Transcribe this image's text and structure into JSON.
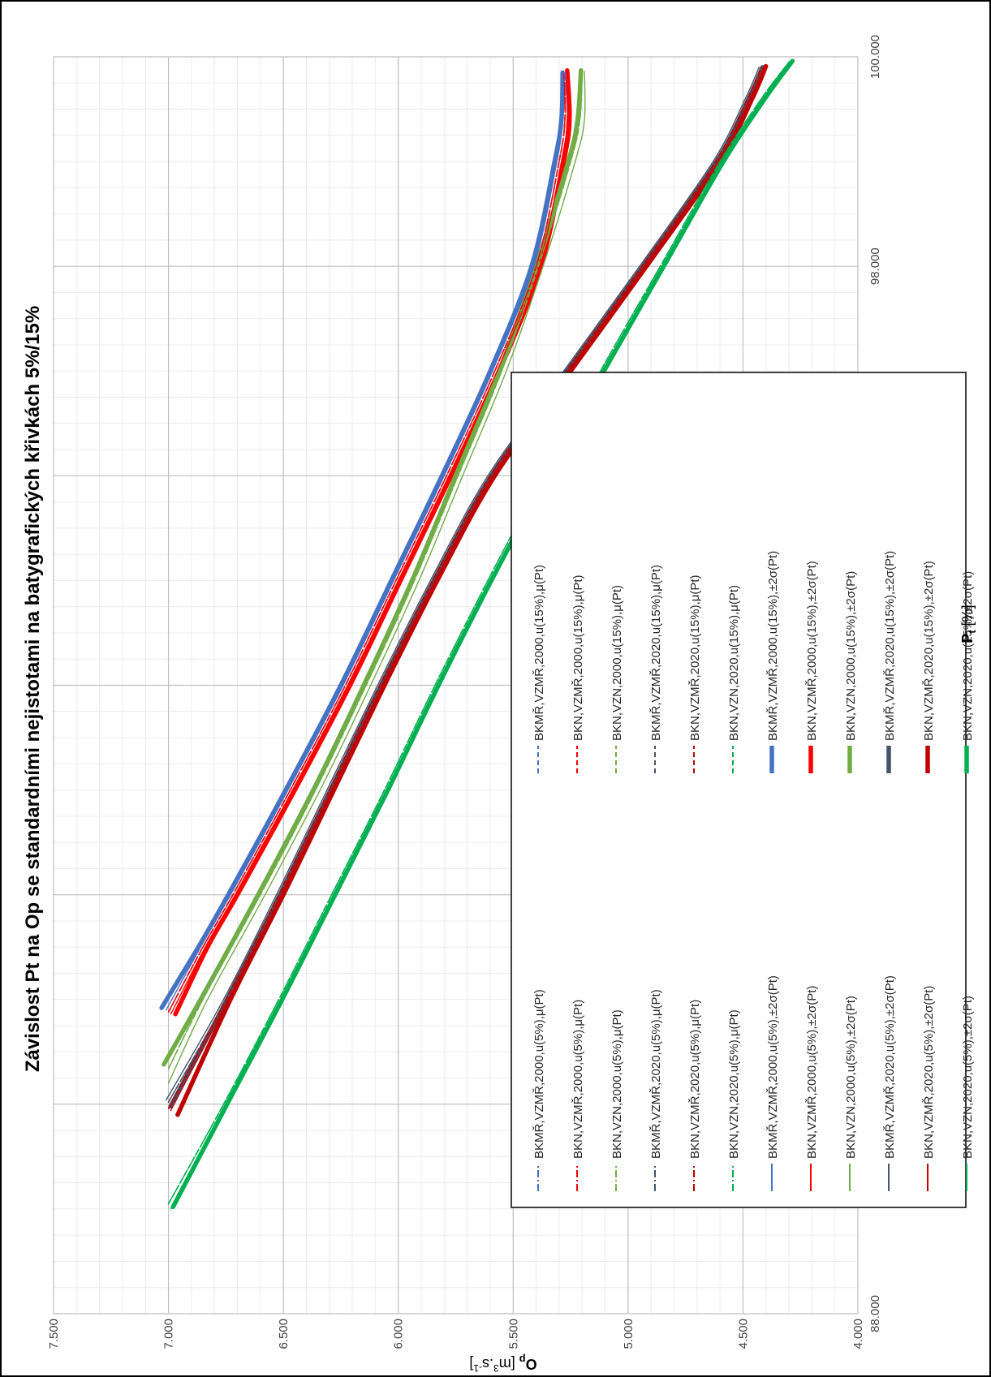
{
  "chart_data": {
    "type": "line",
    "title": "Závislost Pt na Op se standardními nejistotami na batygrafických křivkách 5%/15%",
    "xlabel": {
      "main": "P",
      "sub": "t",
      "unit": " [%]"
    },
    "ylabel": {
      "main": "O",
      "sub": "p",
      "unit_pre": " [m",
      "sup1": "3",
      "unit_mid": ".s",
      "sup2": "-1",
      "unit_post": "]"
    },
    "xlim": [
      88000,
      100000
    ],
    "ylim": [
      4000,
      7500
    ],
    "x_ticks": [
      "88.000",
      "90.000",
      "92.000",
      "94.000",
      "96.000",
      "98.000",
      "100.000"
    ],
    "y_ticks": [
      "4.000",
      "4.500",
      "5.000",
      "5.500",
      "6.000",
      "6.500",
      "7.000",
      "7.500"
    ],
    "x_tick_values": [
      88000,
      90000,
      92000,
      94000,
      96000,
      98000,
      100000
    ],
    "y_tick_values": [
      4000,
      4500,
      5000,
      5500,
      6000,
      6500,
      7000,
      7500
    ],
    "grid": true,
    "legend_position": "inside-left",
    "series": [
      {
        "name": "BKMŘ,VZMŘ,2000,u(5%),μ(Pt)",
        "color": "#4472C4",
        "style": "dashdot",
        "x": [
          90880,
          91500,
          92000,
          93000,
          94000,
          95000,
          96000,
          97000,
          98000,
          99000,
          99400,
          99850
        ],
        "y": [
          7000,
          6850,
          6720,
          6470,
          6230,
          6010,
          5790,
          5580,
          5400,
          5300,
          5275,
          5272
        ]
      },
      {
        "name": "BKN,VZMŘ,2000,u(5%),μ(Pt)",
        "color": "#FF0000",
        "style": "dashdot",
        "x": [
          90880,
          91500,
          92000,
          93000,
          94000,
          95000,
          96000,
          97000,
          98000,
          99000,
          99400,
          99860
        ],
        "y": [
          7000,
          6850,
          6720,
          6470,
          6230,
          6010,
          5790,
          5580,
          5400,
          5300,
          5275,
          5280
        ]
      },
      {
        "name": "BKN,VZN,2000,u(5%),μ(Pt)",
        "color": "#70AD47",
        "style": "dashdot",
        "x": [
          90340,
          91000,
          92000,
          93000,
          94000,
          95000,
          96000,
          97000,
          98000,
          99000,
          99400,
          99860
        ],
        "y": [
          7000,
          6850,
          6600,
          6360,
          6140,
          5930,
          5740,
          5550,
          5390,
          5250,
          5210,
          5200
        ]
      },
      {
        "name": "BKMŘ,VZMŘ,2020,u(5%),μ(Pt)",
        "color": "#44546A",
        "style": "dashdot",
        "x": [
          90020,
          91000,
          92000,
          93000,
          94000,
          95000,
          96000,
          97000,
          98000,
          99000,
          99600,
          99900
        ],
        "y": [
          7000,
          6750,
          6520,
          6300,
          6080,
          5850,
          5600,
          5270,
          4940,
          4620,
          4480,
          4420
        ]
      },
      {
        "name": "BKN,VZMŘ,2020,u(5%),μ(Pt)",
        "color": "#C00000",
        "style": "dashdot",
        "x": [
          89960,
          91000,
          92000,
          93000,
          94000,
          95000,
          96000,
          97000,
          98000,
          99000,
          99600,
          99900
        ],
        "y": [
          7000,
          6750,
          6520,
          6300,
          6080,
          5850,
          5600,
          5270,
          4940,
          4620,
          4480,
          4420
        ]
      },
      {
        "name": "BKN,VZN,2020,u(5%),μ(Pt)",
        "color": "#00B050",
        "style": "dashdot",
        "x": [
          89050,
          90000,
          91000,
          92000,
          93000,
          94000,
          95000,
          96000,
          97000,
          98000,
          99000,
          99600,
          99950
        ],
        "y": [
          7000,
          6760,
          6520,
          6290,
          6060,
          5840,
          5610,
          5370,
          5120,
          4860,
          4600,
          4420,
          4300
        ]
      },
      {
        "name": "BKMŘ,VZMŘ,2000,u(5%),±2σ(Pt)",
        "color": "#4472C4",
        "style": "thin",
        "x": [
          90900,
          91500,
          92000,
          93000,
          94000,
          95000,
          96000,
          97000,
          98000,
          99000,
          99400,
          99850
        ],
        "y": [
          7010,
          6860,
          6730,
          6480,
          6240,
          6020,
          5800,
          5590,
          5410,
          5310,
          5285,
          5280
        ]
      },
      {
        "name": "BKN,VZMŘ,2000,u(5%),±2σ(Pt)",
        "color": "#FF0000",
        "style": "thin",
        "x": [
          90860,
          91500,
          92000,
          93000,
          94000,
          95000,
          96000,
          97000,
          98000,
          99000,
          99400,
          99860
        ],
        "y": [
          6990,
          6840,
          6710,
          6460,
          6220,
          6000,
          5780,
          5570,
          5390,
          5290,
          5265,
          5270
        ]
      },
      {
        "name": "BKN,VZN,2000,u(5%),±2σ(Pt)",
        "color": "#70AD47",
        "style": "thin",
        "x": [
          90200,
          91000,
          92000,
          93000,
          94000,
          95000,
          96000,
          97000,
          98000,
          99000,
          99400,
          99860
        ],
        "y": [
          7000,
          6830,
          6580,
          6340,
          6120,
          5910,
          5720,
          5530,
          5370,
          5230,
          5190,
          5190
        ]
      },
      {
        "name": "BKMŘ,VZMŘ,2020,u(5%),±2σ(Pt)",
        "color": "#44546A",
        "style": "thin",
        "x": [
          90040,
          91000,
          92000,
          93000,
          94000,
          95000,
          96000,
          97000,
          98000,
          99000,
          99600,
          99900
        ],
        "y": [
          7010,
          6760,
          6530,
          6310,
          6090,
          5860,
          5610,
          5280,
          4950,
          4630,
          4490,
          4430
        ]
      },
      {
        "name": "BKN,VZMŘ,2020,u(5%),±2σ(Pt)",
        "color": "#C00000",
        "style": "thin",
        "x": [
          89940,
          91000,
          92000,
          93000,
          94000,
          95000,
          96000,
          97000,
          98000,
          99000,
          99600,
          99900
        ],
        "y": [
          6990,
          6740,
          6510,
          6290,
          6070,
          5840,
          5590,
          5260,
          4930,
          4610,
          4470,
          4410
        ]
      },
      {
        "name": "BKN,VZN,2020,u(5%),±2σ(Pt)",
        "color": "#00B050",
        "style": "thin",
        "x": [
          89000,
          90000,
          91000,
          92000,
          93000,
          94000,
          95000,
          96000,
          97000,
          98000,
          99000,
          99600,
          99950
        ],
        "y": [
          6990,
          6750,
          6510,
          6280,
          6050,
          5830,
          5600,
          5360,
          5110,
          4850,
          4590,
          4410,
          4290
        ]
      },
      {
        "name": "BKMŘ,VZMŘ,2000,u(15%),μ(Pt)",
        "color": "#4472C4",
        "style": "dashed",
        "x": [
          90880,
          91500,
          92000,
          93000,
          94000,
          95000,
          96000,
          97000,
          98000,
          99000,
          99400,
          99850
        ],
        "y": [
          7000,
          6850,
          6720,
          6470,
          6230,
          6010,
          5790,
          5580,
          5400,
          5300,
          5275,
          5272
        ]
      },
      {
        "name": "BKN,VZMŘ,2000,u(15%),μ(Pt)",
        "color": "#FF0000",
        "style": "dashed",
        "x": [
          90880,
          91500,
          92000,
          93000,
          94000,
          95000,
          96000,
          97000,
          98000,
          99000,
          99400,
          99860
        ],
        "y": [
          7000,
          6850,
          6720,
          6470,
          6230,
          6010,
          5790,
          5580,
          5400,
          5300,
          5275,
          5280
        ]
      },
      {
        "name": "BKN,VZN,2000,u(15%),μ(Pt)",
        "color": "#70AD47",
        "style": "dashed",
        "x": [
          90340,
          91000,
          92000,
          93000,
          94000,
          95000,
          96000,
          97000,
          98000,
          99000,
          99400,
          99860
        ],
        "y": [
          7000,
          6850,
          6600,
          6360,
          6140,
          5930,
          5740,
          5550,
          5390,
          5250,
          5210,
          5200
        ]
      },
      {
        "name": "BKMŘ,VZMŘ,2020,u(15%),μ(Pt)",
        "color": "#44546A",
        "style": "dashed",
        "x": [
          90020,
          91000,
          92000,
          93000,
          94000,
          95000,
          96000,
          97000,
          98000,
          99000,
          99600,
          99900
        ],
        "y": [
          7000,
          6750,
          6520,
          6300,
          6080,
          5850,
          5600,
          5270,
          4940,
          4620,
          4480,
          4420
        ]
      },
      {
        "name": "BKN,VZMŘ,2020,u(15%),μ(Pt)",
        "color": "#C00000",
        "style": "dashed",
        "x": [
          89960,
          91000,
          92000,
          93000,
          94000,
          95000,
          96000,
          97000,
          98000,
          99000,
          99600,
          99900
        ],
        "y": [
          7000,
          6750,
          6520,
          6300,
          6080,
          5850,
          5600,
          5270,
          4940,
          4620,
          4480,
          4420
        ]
      },
      {
        "name": "BKN,VZN,2020,u(15%),μ(Pt)",
        "color": "#00B050",
        "style": "dashed",
        "x": [
          89050,
          90000,
          91000,
          92000,
          93000,
          94000,
          95000,
          96000,
          97000,
          98000,
          99000,
          99600,
          99950
        ],
        "y": [
          7000,
          6760,
          6520,
          6290,
          6060,
          5840,
          5610,
          5370,
          5120,
          4860,
          4600,
          4420,
          4300
        ]
      },
      {
        "name": "BKMŘ,VZMŘ,2000,u(15%),±2σ(Pt)",
        "color": "#4472C4",
        "style": "thick",
        "x": [
          90920,
          91500,
          92000,
          93000,
          94000,
          95000,
          96000,
          97000,
          98000,
          99000,
          99400,
          99850
        ],
        "y": [
          7030,
          6870,
          6740,
          6490,
          6250,
          6030,
          5810,
          5600,
          5420,
          5320,
          5290,
          5285
        ]
      },
      {
        "name": "BKN,VZMŘ,2000,u(15%),±2σ(Pt)",
        "color": "#FF0000",
        "style": "thick",
        "x": [
          90860,
          91500,
          92000,
          93000,
          94000,
          95000,
          96000,
          97000,
          98000,
          99000,
          99400,
          99870
        ],
        "y": [
          6970,
          6830,
          6700,
          6450,
          6210,
          5990,
          5770,
          5560,
          5380,
          5280,
          5255,
          5265
        ]
      },
      {
        "name": "BKN,VZN,2000,u(15%),±2σ(Pt)",
        "color": "#70AD47",
        "style": "thick",
        "x": [
          90380,
          91000,
          92000,
          93000,
          94000,
          95000,
          96000,
          97000,
          98000,
          99000,
          99400,
          99870
        ],
        "y": [
          7020,
          6860,
          6610,
          6370,
          6150,
          5940,
          5750,
          5560,
          5400,
          5260,
          5220,
          5205
        ]
      },
      {
        "name": "BKMŘ,VZMŘ,2020,u(15%),±2σ(Pt)",
        "color": "#44546A",
        "style": "thick",
        "x": [
          89980,
          91000,
          92000,
          93000,
          94000,
          95000,
          96000,
          97000,
          98000,
          99000,
          99600,
          99900
        ],
        "y": [
          6990,
          6745,
          6515,
          6295,
          6075,
          5845,
          5595,
          5265,
          4935,
          4615,
          4475,
          4415
        ]
      },
      {
        "name": "BKN,VZMŘ,2020,u(15%),±2σ(Pt)",
        "color": "#C00000",
        "style": "thick",
        "x": [
          89900,
          91000,
          92000,
          93000,
          94000,
          95000,
          96000,
          97000,
          98000,
          99000,
          99600,
          99910
        ],
        "y": [
          6960,
          6730,
          6500,
          6280,
          6060,
          5830,
          5580,
          5250,
          4920,
          4600,
          4460,
          4400
        ]
      },
      {
        "name": "BKN,VZN,2020,u(15%),±2σ(Pt)",
        "color": "#00B050",
        "style": "thick",
        "x": [
          89020,
          90000,
          91000,
          92000,
          93000,
          94000,
          95000,
          96000,
          97000,
          98000,
          99000,
          99600,
          99960
        ],
        "y": [
          6980,
          6745,
          6505,
          6275,
          6045,
          5825,
          5595,
          5355,
          5105,
          4845,
          4585,
          4405,
          4285
        ]
      }
    ]
  }
}
